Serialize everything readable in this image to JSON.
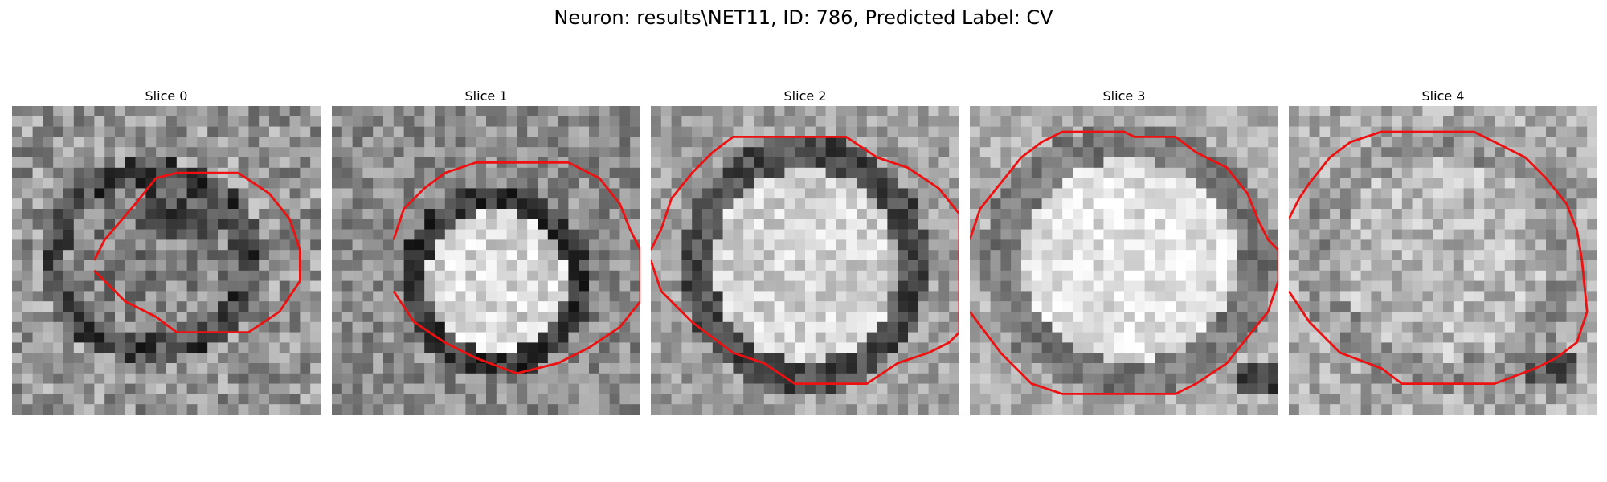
{
  "figure": {
    "title": "Neuron: results\\NET11, ID: 786, Predicted Label: CV"
  },
  "slices": [
    {
      "title": "Slice 0"
    },
    {
      "title": "Slice 1"
    },
    {
      "title": "Slice 2"
    },
    {
      "title": "Slice 3"
    },
    {
      "title": "Slice 4"
    }
  ],
  "colors": {
    "contour": "#ee1111"
  }
}
